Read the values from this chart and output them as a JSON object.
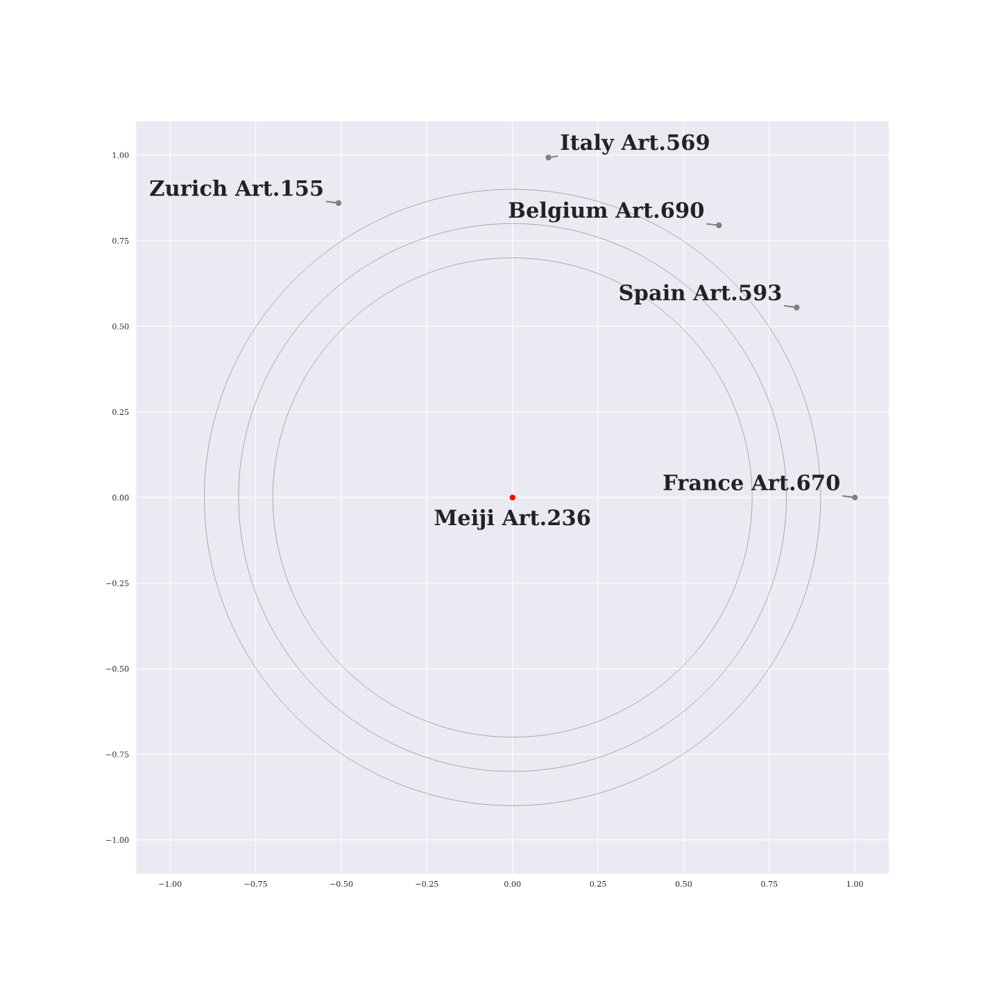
{
  "chart_data": {
    "type": "scatter",
    "xlim": [
      -1.1,
      1.1
    ],
    "ylim": [
      -1.1,
      1.1
    ],
    "xticks": [
      {
        "value": -1.0,
        "label": "−1.00"
      },
      {
        "value": -0.75,
        "label": "−0.75"
      },
      {
        "value": -0.5,
        "label": "−0.50"
      },
      {
        "value": -0.25,
        "label": "−0.25"
      },
      {
        "value": 0,
        "label": "0.00"
      },
      {
        "value": 0.25,
        "label": "0.25"
      },
      {
        "value": 0.5,
        "label": "0.50"
      },
      {
        "value": 0.75,
        "label": "0.75"
      },
      {
        "value": 1.0,
        "label": "1.00"
      }
    ],
    "yticks": [
      {
        "value": -1.0,
        "label": "−1.00"
      },
      {
        "value": -0.75,
        "label": "−0.75"
      },
      {
        "value": -0.5,
        "label": "−0.50"
      },
      {
        "value": -0.25,
        "label": "−0.25"
      },
      {
        "value": 0,
        "label": "0.00"
      },
      {
        "value": 0.25,
        "label": "0.25"
      },
      {
        "value": 0.5,
        "label": "0.50"
      },
      {
        "value": 0.75,
        "label": "0.75"
      },
      {
        "value": 1.0,
        "label": "1.00"
      }
    ],
    "grid": true,
    "series": [
      {
        "marker": "circle",
        "color": "#808080",
        "x": [
          1.0,
          0.83,
          0.603,
          0.105,
          -0.508
        ],
        "values": [
          0.0,
          0.555,
          0.795,
          0.993,
          0.86
        ]
      },
      {
        "marker": "circle",
        "color": "#ff0000",
        "x": [
          0
        ],
        "values": [
          0
        ]
      }
    ],
    "annotations": [
      {
        "text": "Meiji Art.236",
        "x": 0,
        "y": 0
      },
      {
        "text": "France Art.670",
        "x": 1.0,
        "y": 0.0
      },
      {
        "text": "Spain Art.593",
        "x": 0.83,
        "y": 0.555
      },
      {
        "text": "Belgium Art.690",
        "x": 0.603,
        "y": 0.795
      },
      {
        "text": "Italy Art.569",
        "x": 0.105,
        "y": 0.993
      },
      {
        "text": "Zurich Art.155",
        "x": -0.508,
        "y": 0.86
      }
    ]
  }
}
